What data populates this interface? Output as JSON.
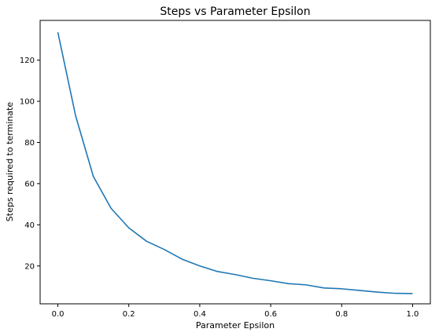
{
  "chart_data": {
    "type": "line",
    "title": "Steps vs Parameter Epsilon",
    "xlabel": "Parameter Epsilon",
    "ylabel": "Steps required to terminate",
    "xlim": [
      -0.05,
      1.05
    ],
    "ylim": [
      1.6,
      139.3
    ],
    "xticks": [
      0.0,
      0.2,
      0.4,
      0.6,
      0.8,
      1.0
    ],
    "xtick_labels": [
      "0.0",
      "0.2",
      "0.4",
      "0.6",
      "0.8",
      "1.0"
    ],
    "yticks": [
      20,
      40,
      60,
      80,
      100,
      120
    ],
    "ytick_labels": [
      "20",
      "40",
      "60",
      "80",
      "100",
      "120"
    ],
    "grid": false,
    "series": [
      {
        "name": "steps",
        "color": "#1f77b4",
        "x": [
          0.0,
          0.05,
          0.1,
          0.15,
          0.2,
          0.25,
          0.3,
          0.35,
          0.4,
          0.45,
          0.5,
          0.55,
          0.6,
          0.65,
          0.7,
          0.75,
          0.8,
          0.85,
          0.9,
          0.95,
          1.0
        ],
        "y": [
          133.5,
          93.0,
          63.5,
          48.0,
          38.5,
          32.0,
          28.0,
          23.3,
          20.0,
          17.3,
          15.8,
          14.0,
          12.8,
          11.4,
          10.8,
          9.3,
          8.9,
          8.1,
          7.3,
          6.7,
          6.6
        ]
      }
    ]
  }
}
